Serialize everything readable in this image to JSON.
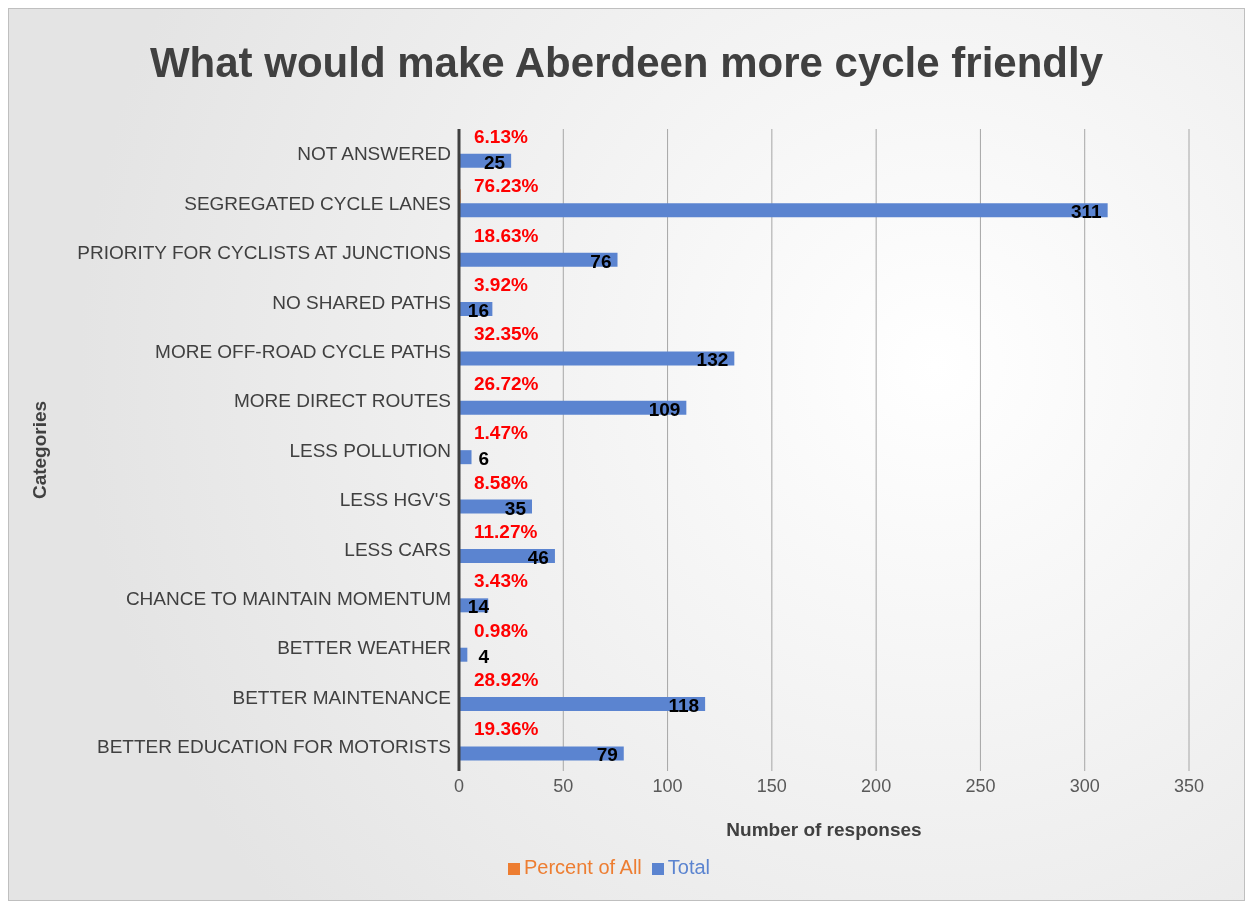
{
  "chart_data": {
    "type": "bar",
    "orientation": "horizontal",
    "title": "What would make Aberdeen more cycle friendly",
    "xlabel": "Number of responses",
    "ylabel": "Categories",
    "categories": [
      "NOT ANSWERED",
      "SEGREGATED CYCLE LANES",
      "PRIORITY FOR CYCLISTS AT JUNCTIONS",
      "NO SHARED PATHS",
      "MORE OFF-ROAD CYCLE PATHS",
      "MORE DIRECT ROUTES",
      "LESS POLLUTION",
      "LESS HGV'S",
      "LESS CARS",
      "CHANCE TO MAINTAIN MOMENTUM",
      "BETTER WEATHER",
      "BETTER MAINTENANCE",
      "BETTER EDUCATION FOR MOTORISTS"
    ],
    "series": [
      {
        "name": "Percent of All",
        "color": "#ed7d31",
        "values": [
          0.0613,
          0.7623,
          0.1863,
          0.0392,
          0.3235,
          0.2672,
          0.0147,
          0.0858,
          0.1127,
          0.0343,
          0.0098,
          0.2892,
          0.1936
        ],
        "value_labels": [
          "6.13%",
          "76.23%",
          "18.63%",
          "3.92%",
          "32.35%",
          "26.72%",
          "1.47%",
          "8.58%",
          "11.27%",
          "3.43%",
          "0.98%",
          "28.92%",
          "19.36%"
        ]
      },
      {
        "name": "Total",
        "color": "#5b84d0",
        "values": [
          25,
          311,
          76,
          16,
          132,
          109,
          6,
          35,
          46,
          14,
          4,
          118,
          79
        ],
        "value_labels": [
          "25",
          "311",
          "76",
          "16",
          "132",
          "109",
          "6",
          "35",
          "46",
          "14",
          "4",
          "118",
          "79"
        ]
      }
    ],
    "xlim": [
      0,
      350
    ],
    "xticks": [
      0,
      50,
      100,
      150,
      200,
      250,
      300,
      350
    ],
    "grid": "x",
    "legend": "bottom"
  }
}
